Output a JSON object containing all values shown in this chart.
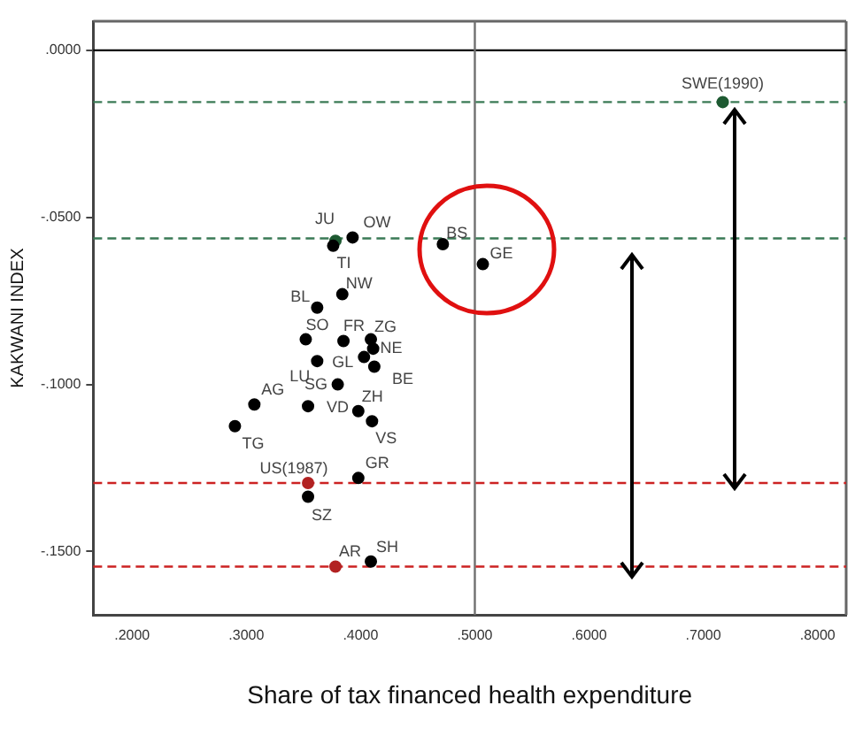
{
  "chart_data": {
    "type": "scatter",
    "xlabel": "Share of tax financed health expenditure",
    "ylabel": "KAKWANI INDEX",
    "xlim": [
      0.166,
      0.825
    ],
    "ylim": [
      -0.169,
      0.0087
    ],
    "xticks": [
      {
        "value": 0.2,
        "label": ".2000"
      },
      {
        "value": 0.3,
        "label": ".3000"
      },
      {
        "value": 0.4,
        "label": ".4000"
      },
      {
        "value": 0.5,
        "label": ".5000"
      },
      {
        "value": 0.6,
        "label": ".6000"
      },
      {
        "value": 0.7,
        "label": ".7000"
      },
      {
        "value": 0.8,
        "label": ".8000"
      }
    ],
    "yticks": [
      {
        "value": 0,
        "label": ".0000"
      },
      {
        "value": -0.05,
        "label": "-.0500"
      },
      {
        "value": -0.1,
        "label": "-.1000"
      },
      {
        "value": -0.15,
        "label": "-.1500"
      }
    ],
    "grid": false,
    "legend": false,
    "marker": "circle",
    "series": [
      {
        "x": [
          0.717,
          0.378,
          0.393,
          0.472,
          0.507,
          0.376,
          0.384,
          0.362,
          0.352,
          0.385,
          0.409,
          0.403,
          0.411,
          0.362,
          0.412,
          0.354,
          0.38,
          0.398,
          0.41,
          0.307,
          0.29,
          0.398,
          0.354,
          0.354,
          0.378,
          0.409
        ],
        "values": [
          -0.0155,
          -0.057,
          -0.056,
          -0.058,
          -0.064,
          -0.0585,
          -0.073,
          -0.077,
          -0.0865,
          -0.087,
          -0.0865,
          -0.0918,
          -0.0893,
          -0.093,
          -0.0947,
          -0.1065,
          -0.1,
          -0.108,
          -0.111,
          -0.106,
          -0.1125,
          -0.128,
          -0.1295,
          -0.1336,
          -0.1545,
          -0.153
        ],
        "colors": [
          "#1e5a32",
          "#1e5a32",
          "#000000",
          "#000000",
          "#000000",
          "#000000",
          "#000000",
          "#000000",
          "#000000",
          "#000000",
          "#000000",
          "#000000",
          "#000000",
          "#000000",
          "#000000",
          "#000000",
          "#000000",
          "#000000",
          "#000000",
          "#000000",
          "#000000",
          "#000000",
          "#b22222",
          "#000000",
          "#b22222",
          "#000000"
        ]
      }
    ],
    "ref_lines": [
      {
        "axis": "y",
        "value": 0,
        "color": "#000000",
        "line_style": "solid"
      },
      {
        "axis": "x",
        "value": 0.5,
        "color": "#707070",
        "line_style": "solid"
      },
      {
        "axis": "y",
        "value": -0.0155,
        "color": "#3a7a55",
        "line_style": "dashed"
      },
      {
        "axis": "y",
        "value": -0.0563,
        "color": "#3a7a55",
        "line_style": "dashed"
      },
      {
        "axis": "y",
        "value": -0.1295,
        "color": "#cc2222",
        "line_style": "dashed"
      },
      {
        "axis": "y",
        "value": -0.1545,
        "color": "#cc2222",
        "line_style": "dashed"
      }
    ],
    "annotations": [
      {
        "text": "SWE(1990)",
        "x": 0.717,
        "y": -0.0155
      },
      {
        "text": "JU",
        "x": 0.378,
        "y": -0.057
      },
      {
        "text": "OW",
        "x": 0.393,
        "y": -0.056
      },
      {
        "text": "BS",
        "x": 0.472,
        "y": -0.058
      },
      {
        "text": "GE",
        "x": 0.507,
        "y": -0.064
      },
      {
        "text": "TI",
        "x": 0.376,
        "y": -0.0585
      },
      {
        "text": "NW",
        "x": 0.384,
        "y": -0.073
      },
      {
        "text": "BL",
        "x": 0.362,
        "y": -0.077
      },
      {
        "text": "SO",
        "x": 0.352,
        "y": -0.0865
      },
      {
        "text": "FR",
        "x": 0.385,
        "y": -0.087
      },
      {
        "text": "ZG",
        "x": 0.409,
        "y": -0.0865
      },
      {
        "text": "GL",
        "x": 0.403,
        "y": -0.0918
      },
      {
        "text": "NE",
        "x": 0.411,
        "y": -0.0893
      },
      {
        "text": "LU",
        "x": 0.362,
        "y": -0.093
      },
      {
        "text": "BE",
        "x": 0.412,
        "y": -0.0947
      },
      {
        "text": "SG",
        "x": 0.354,
        "y": -0.1065
      },
      {
        "text": "VD",
        "x": 0.38,
        "y": -0.1
      },
      {
        "text": "ZH",
        "x": 0.398,
        "y": -0.108
      },
      {
        "text": "VS",
        "x": 0.41,
        "y": -0.111
      },
      {
        "text": "AG",
        "x": 0.307,
        "y": -0.106
      },
      {
        "text": "TG",
        "x": 0.29,
        "y": -0.1125
      },
      {
        "text": "GR",
        "x": 0.398,
        "y": -0.128
      },
      {
        "text": "US(1987)",
        "x": 0.354,
        "y": -0.1295
      },
      {
        "text": "SZ",
        "x": 0.354,
        "y": -0.1336
      },
      {
        "text": "AR",
        "x": 0.378,
        "y": -0.1545
      },
      {
        "text": "SH",
        "x": 0.409,
        "y": -0.153
      }
    ]
  }
}
